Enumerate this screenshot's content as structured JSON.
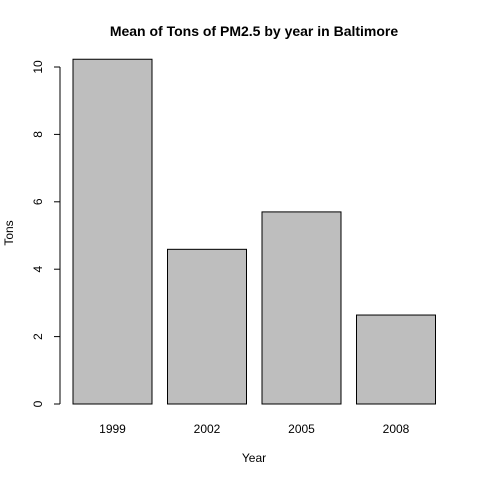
{
  "chart_data": {
    "type": "bar",
    "title": "Mean of Tons of PM2.5 by year in Baltimore",
    "xlabel": "Year",
    "ylabel": "Tons",
    "categories": [
      "1999",
      "2002",
      "2005",
      "2008"
    ],
    "values": [
      10.23,
      4.59,
      5.7,
      2.64
    ],
    "ylim": [
      0,
      10.5
    ],
    "yticks": [
      0,
      2,
      4,
      6,
      8,
      10
    ],
    "bar_color": "#bebebe",
    "grid": false,
    "legend": "none"
  }
}
